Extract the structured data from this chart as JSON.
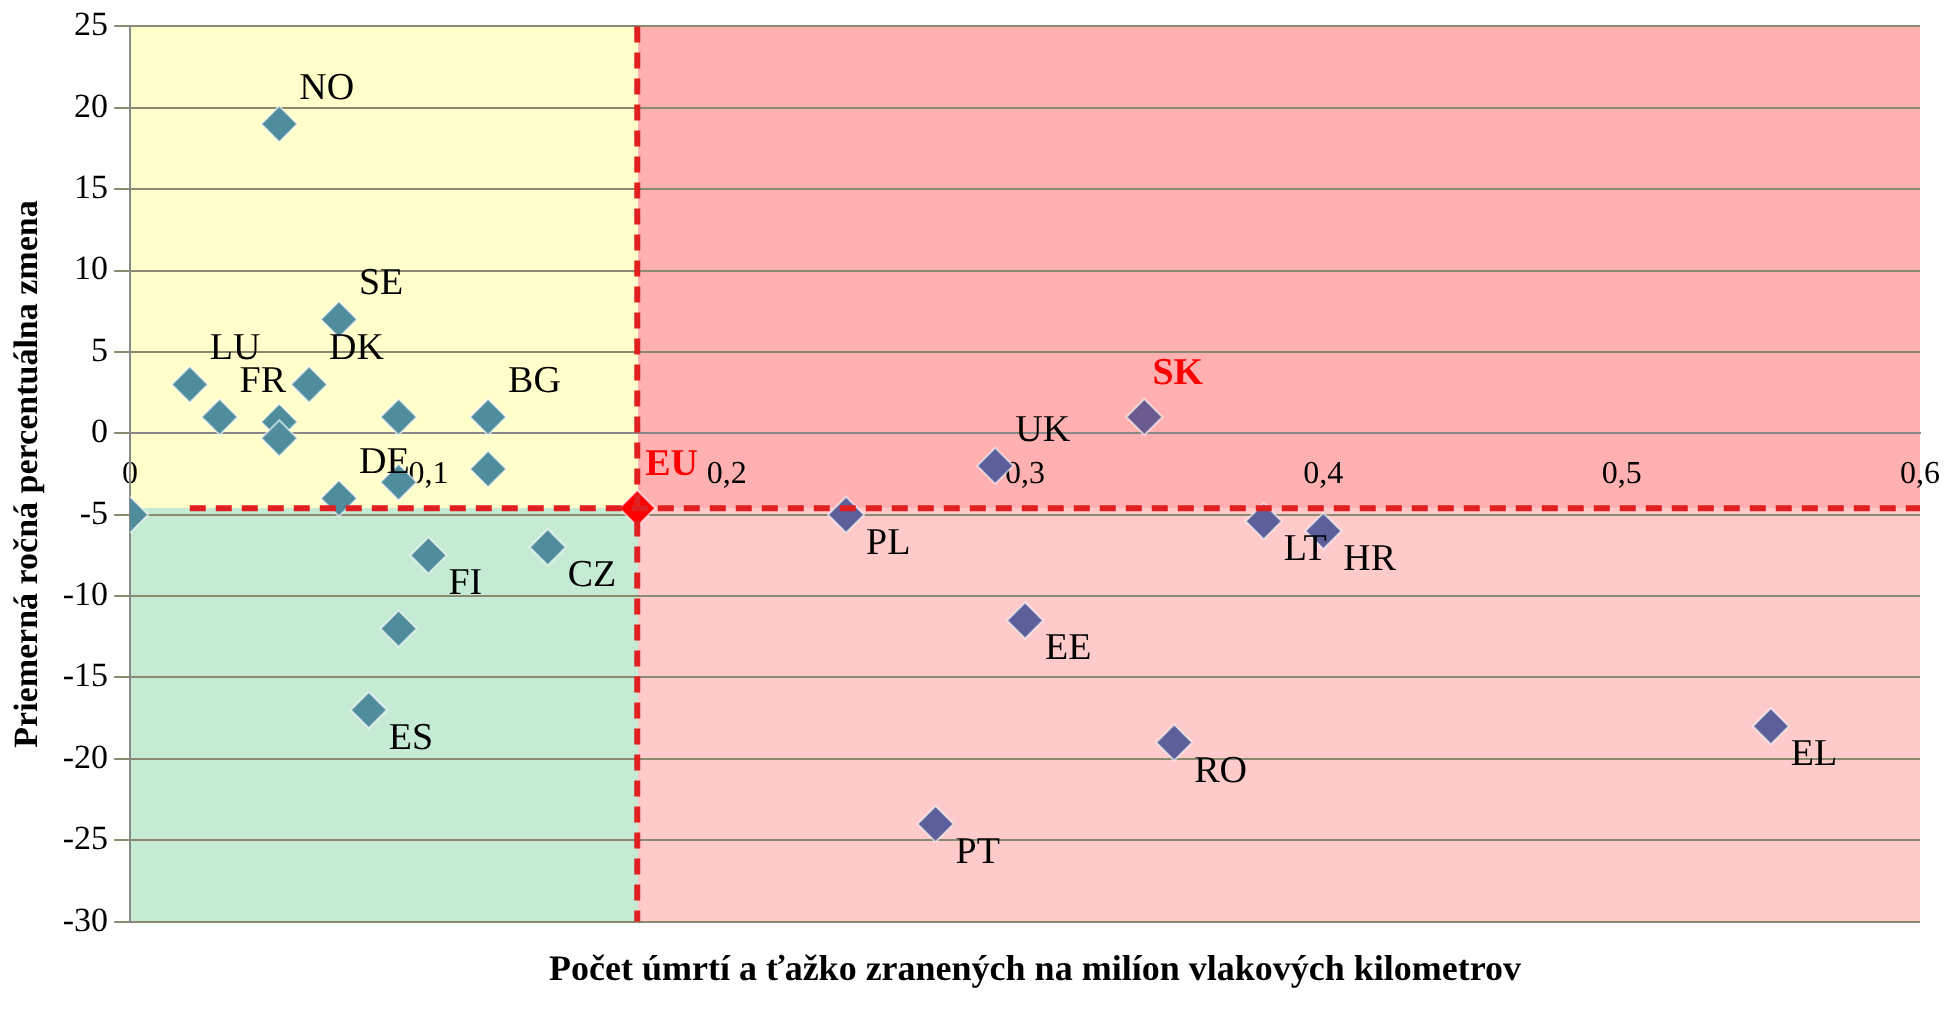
{
  "chart_data": {
    "type": "scatter",
    "xlabel": "Počet úmrtí a ťažko zranených na milíon vlakových kilometrov",
    "ylabel": "Priemerná ročná percentuálna zmena",
    "xlim": [
      0,
      0.6
    ],
    "xticks": [
      0,
      {
        "value": 0.1,
        "label": "0,1"
      },
      {
        "value": 0.2,
        "label": "0,2"
      },
      {
        "value": 0.3,
        "label": "0,3"
      },
      {
        "value": 0.4,
        "label": "0,4"
      },
      {
        "value": 0.5,
        "label": "0,5"
      },
      {
        "value": 0.6,
        "label": "0,6"
      }
    ],
    "ylim": [
      -30,
      25
    ],
    "yticks": [
      -30,
      -25,
      -20,
      -15,
      -10,
      -5,
      0,
      5,
      10,
      15,
      20,
      25
    ],
    "grid": "y",
    "legend": false,
    "marker": "diamond",
    "series": [
      {
        "x": [
          0.05,
          0.07,
          0.02,
          0.03,
          0.05,
          0.05,
          0.06,
          0.09,
          0.12,
          0.09,
          0.12,
          0.07,
          0,
          0.1,
          0.14,
          0.09,
          0.08
        ],
        "values": [
          19,
          7,
          3,
          1,
          0.7,
          -0.3,
          3,
          1,
          1,
          -3,
          -2.2,
          -4,
          -5,
          -7.5,
          -7,
          -12,
          -17
        ],
        "color": "#4f8c9c"
      },
      {
        "x": [
          0.24,
          0.29,
          0.38,
          0.4,
          0.3,
          0.35,
          0.27,
          0.55
        ],
        "values": [
          -5,
          -2,
          -5.4,
          -6,
          -11.5,
          -19,
          -24,
          -18
        ],
        "color": "#5c5f9a"
      },
      {
        "name": "SK",
        "x": [
          0.34
        ],
        "values": [
          1
        ],
        "color": "#6a5a8e"
      },
      {
        "name": "EU",
        "x": [
          0.17
        ],
        "values": [
          -4.6
        ],
        "color": "#ff0000"
      }
    ],
    "ref_lines": [
      {
        "axis": "x",
        "value": 0.17,
        "color": "#e02020",
        "line_style": "dashed"
      },
      {
        "axis": "y",
        "value": -4.6,
        "color": "#e02020",
        "line_style": "dashed"
      }
    ],
    "annotations": [
      {
        "text": "NO",
        "x": 0.05,
        "y": 19
      },
      {
        "text": "SE",
        "x": 0.07,
        "y": 7
      },
      {
        "text": "LU",
        "x": 0.02,
        "y": 3
      },
      {
        "text": "FR",
        "x": 0.03,
        "y": 1
      },
      {
        "text": "DK",
        "x": 0.06,
        "y": 3
      },
      {
        "text": "BG",
        "x": 0.12,
        "y": 1
      },
      {
        "text": "DE",
        "x": 0.07,
        "y": -4
      },
      {
        "text": "FI",
        "x": 0.1,
        "y": -7.5
      },
      {
        "text": "CZ",
        "x": 0.14,
        "y": -7
      },
      {
        "text": "ES",
        "x": 0.08,
        "y": -17
      },
      {
        "text": "PL",
        "x": 0.24,
        "y": -5
      },
      {
        "text": "UK",
        "x": 0.29,
        "y": -2
      },
      {
        "text": "LT",
        "x": 0.38,
        "y": -5.4
      },
      {
        "text": "HR",
        "x": 0.4,
        "y": -6
      },
      {
        "text": "EE",
        "x": 0.3,
        "y": -11.5
      },
      {
        "text": "RO",
        "x": 0.35,
        "y": -19
      },
      {
        "text": "PT",
        "x": 0.27,
        "y": -24
      },
      {
        "text": "EL",
        "x": 0.55,
        "y": -18
      }
    ]
  }
}
